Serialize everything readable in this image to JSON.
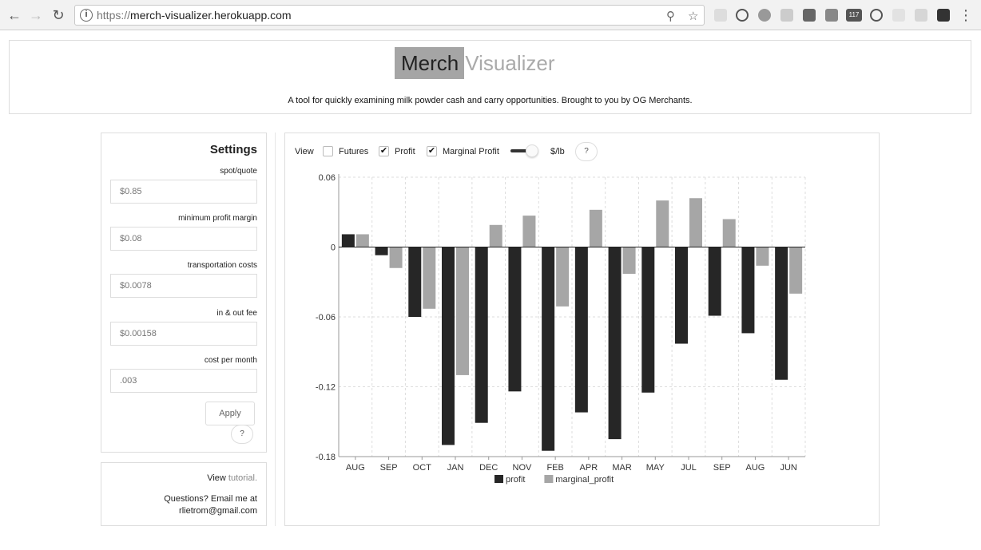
{
  "browser": {
    "url_prefix": "https://",
    "url_host": "merch-visualizer.herokuapp.com",
    "ext_badge": "117"
  },
  "header": {
    "logo_bold": "Merch",
    "logo_light": "Visualizer",
    "tagline": "A tool for quickly examining milk powder cash and carry opportunities. Brought to you by OG Merchants."
  },
  "settings": {
    "title": "Settings",
    "fields": [
      {
        "label": "spot/quote",
        "placeholder": "$0.85"
      },
      {
        "label": "minimum profit margin",
        "placeholder": "$0.08"
      },
      {
        "label": "transportation costs",
        "placeholder": "$0.0078"
      },
      {
        "label": "in & out fee",
        "placeholder": "$0.00158"
      },
      {
        "label": "cost per month",
        "placeholder": ".003"
      }
    ],
    "apply_label": "Apply",
    "help_label": "?"
  },
  "help": {
    "view_prefix": "View ",
    "tutorial_link": "tutorial.",
    "questions": "Questions? Email me at",
    "email": "rlietrom@gmail.com"
  },
  "controls": {
    "view_label": "View",
    "futures": {
      "label": "Futures",
      "checked": false
    },
    "profit": {
      "label": "Profit",
      "checked": true
    },
    "marginal_profit": {
      "label": "Marginal Profit",
      "checked": true
    },
    "unit_label": "$/lb",
    "help_label": "?"
  },
  "colors": {
    "profit": "#262626",
    "marginal_profit": "#a6a6a6"
  },
  "chart_data": {
    "type": "bar",
    "categories": [
      "AUG",
      "SEP",
      "OCT",
      "JAN",
      "DEC",
      "NOV",
      "FEB",
      "APR",
      "MAR",
      "MAY",
      "JUL",
      "SEP",
      "AUG",
      "JUN"
    ],
    "series": [
      {
        "name": "profit",
        "values": [
          0.011,
          -0.007,
          -0.06,
          -0.17,
          -0.151,
          -0.124,
          -0.175,
          -0.142,
          -0.165,
          -0.125,
          -0.083,
          -0.059,
          -0.074,
          -0.114
        ]
      },
      {
        "name": "marginal_profit",
        "values": [
          0.011,
          -0.018,
          -0.053,
          -0.11,
          0.019,
          0.027,
          -0.051,
          0.032,
          -0.023,
          0.04,
          0.042,
          0.024,
          -0.016,
          -0.04
        ]
      }
    ],
    "yticks": [
      "0.06",
      "0",
      "-0.06",
      "-0.12",
      "-0.18"
    ],
    "ylim": [
      -0.18,
      0.06
    ],
    "grid": true,
    "legend": "bottom-center"
  }
}
